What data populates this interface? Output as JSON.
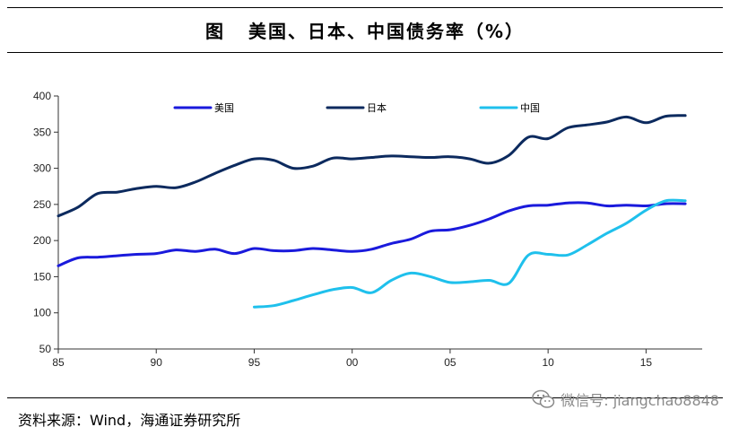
{
  "title": {
    "figure_label": "图",
    "text": "美国、日本、中国债务率（%）"
  },
  "source": "资料来源：Wind，海通证券研究所",
  "watermark": {
    "text": "微信号: jiangchao8848",
    "icon": "wechat-icon"
  },
  "chart_data": {
    "type": "line",
    "title": "美国、日本、中国债务率（%）",
    "xlabel": "",
    "ylabel": "",
    "xlim": [
      1985,
      2017.5
    ],
    "ylim": [
      50,
      400
    ],
    "yticks": [
      50,
      100,
      150,
      200,
      250,
      300,
      350,
      400
    ],
    "xticks": [
      1985,
      1990,
      1995,
      2000,
      2005,
      2010,
      2015
    ],
    "xtick_labels": [
      "85",
      "90",
      "95",
      "00",
      "05",
      "10",
      "15"
    ],
    "legend_position": "top",
    "series": [
      {
        "name": "美国",
        "color": "#1a1adc",
        "x": [
          1985,
          1986,
          1987,
          1988,
          1989,
          1990,
          1991,
          1992,
          1993,
          1994,
          1995,
          1996,
          1997,
          1998,
          1999,
          2000,
          2001,
          2002,
          2003,
          2004,
          2005,
          2006,
          2007,
          2008,
          2009,
          2010,
          2011,
          2012,
          2013,
          2014,
          2015,
          2016,
          2017
        ],
        "values": [
          165,
          176,
          177,
          179,
          181,
          182,
          187,
          185,
          188,
          182,
          189,
          186,
          186,
          189,
          187,
          185,
          188,
          196,
          202,
          213,
          215,
          221,
          230,
          241,
          248,
          249,
          252,
          252,
          248,
          249,
          248,
          251,
          251
        ]
      },
      {
        "name": "日本",
        "color": "#0c2a5e",
        "x": [
          1985,
          1986,
          1987,
          1988,
          1989,
          1990,
          1991,
          1992,
          1993,
          1994,
          1995,
          1996,
          1997,
          1998,
          1999,
          2000,
          2001,
          2002,
          2003,
          2004,
          2005,
          2006,
          2007,
          2008,
          2009,
          2010,
          2011,
          2012,
          2013,
          2014,
          2015,
          2016,
          2017
        ],
        "values": [
          234,
          246,
          265,
          267,
          272,
          275,
          273,
          281,
          293,
          304,
          313,
          311,
          300,
          303,
          314,
          313,
          315,
          317,
          316,
          315,
          316,
          313,
          307,
          318,
          343,
          341,
          356,
          360,
          364,
          371,
          363,
          372,
          373
        ]
      },
      {
        "name": "中国",
        "color": "#1fc0ec",
        "x": [
          1995,
          1996,
          1997,
          1998,
          1999,
          2000,
          2001,
          2002,
          2003,
          2004,
          2005,
          2006,
          2007,
          2008,
          2009,
          2010,
          2011,
          2012,
          2013,
          2014,
          2015,
          2016,
          2017
        ],
        "values": [
          108,
          110,
          117,
          125,
          132,
          135,
          128,
          145,
          155,
          150,
          142,
          143,
          145,
          141,
          180,
          181,
          180,
          194,
          210,
          224,
          242,
          255,
          255
        ]
      }
    ]
  }
}
